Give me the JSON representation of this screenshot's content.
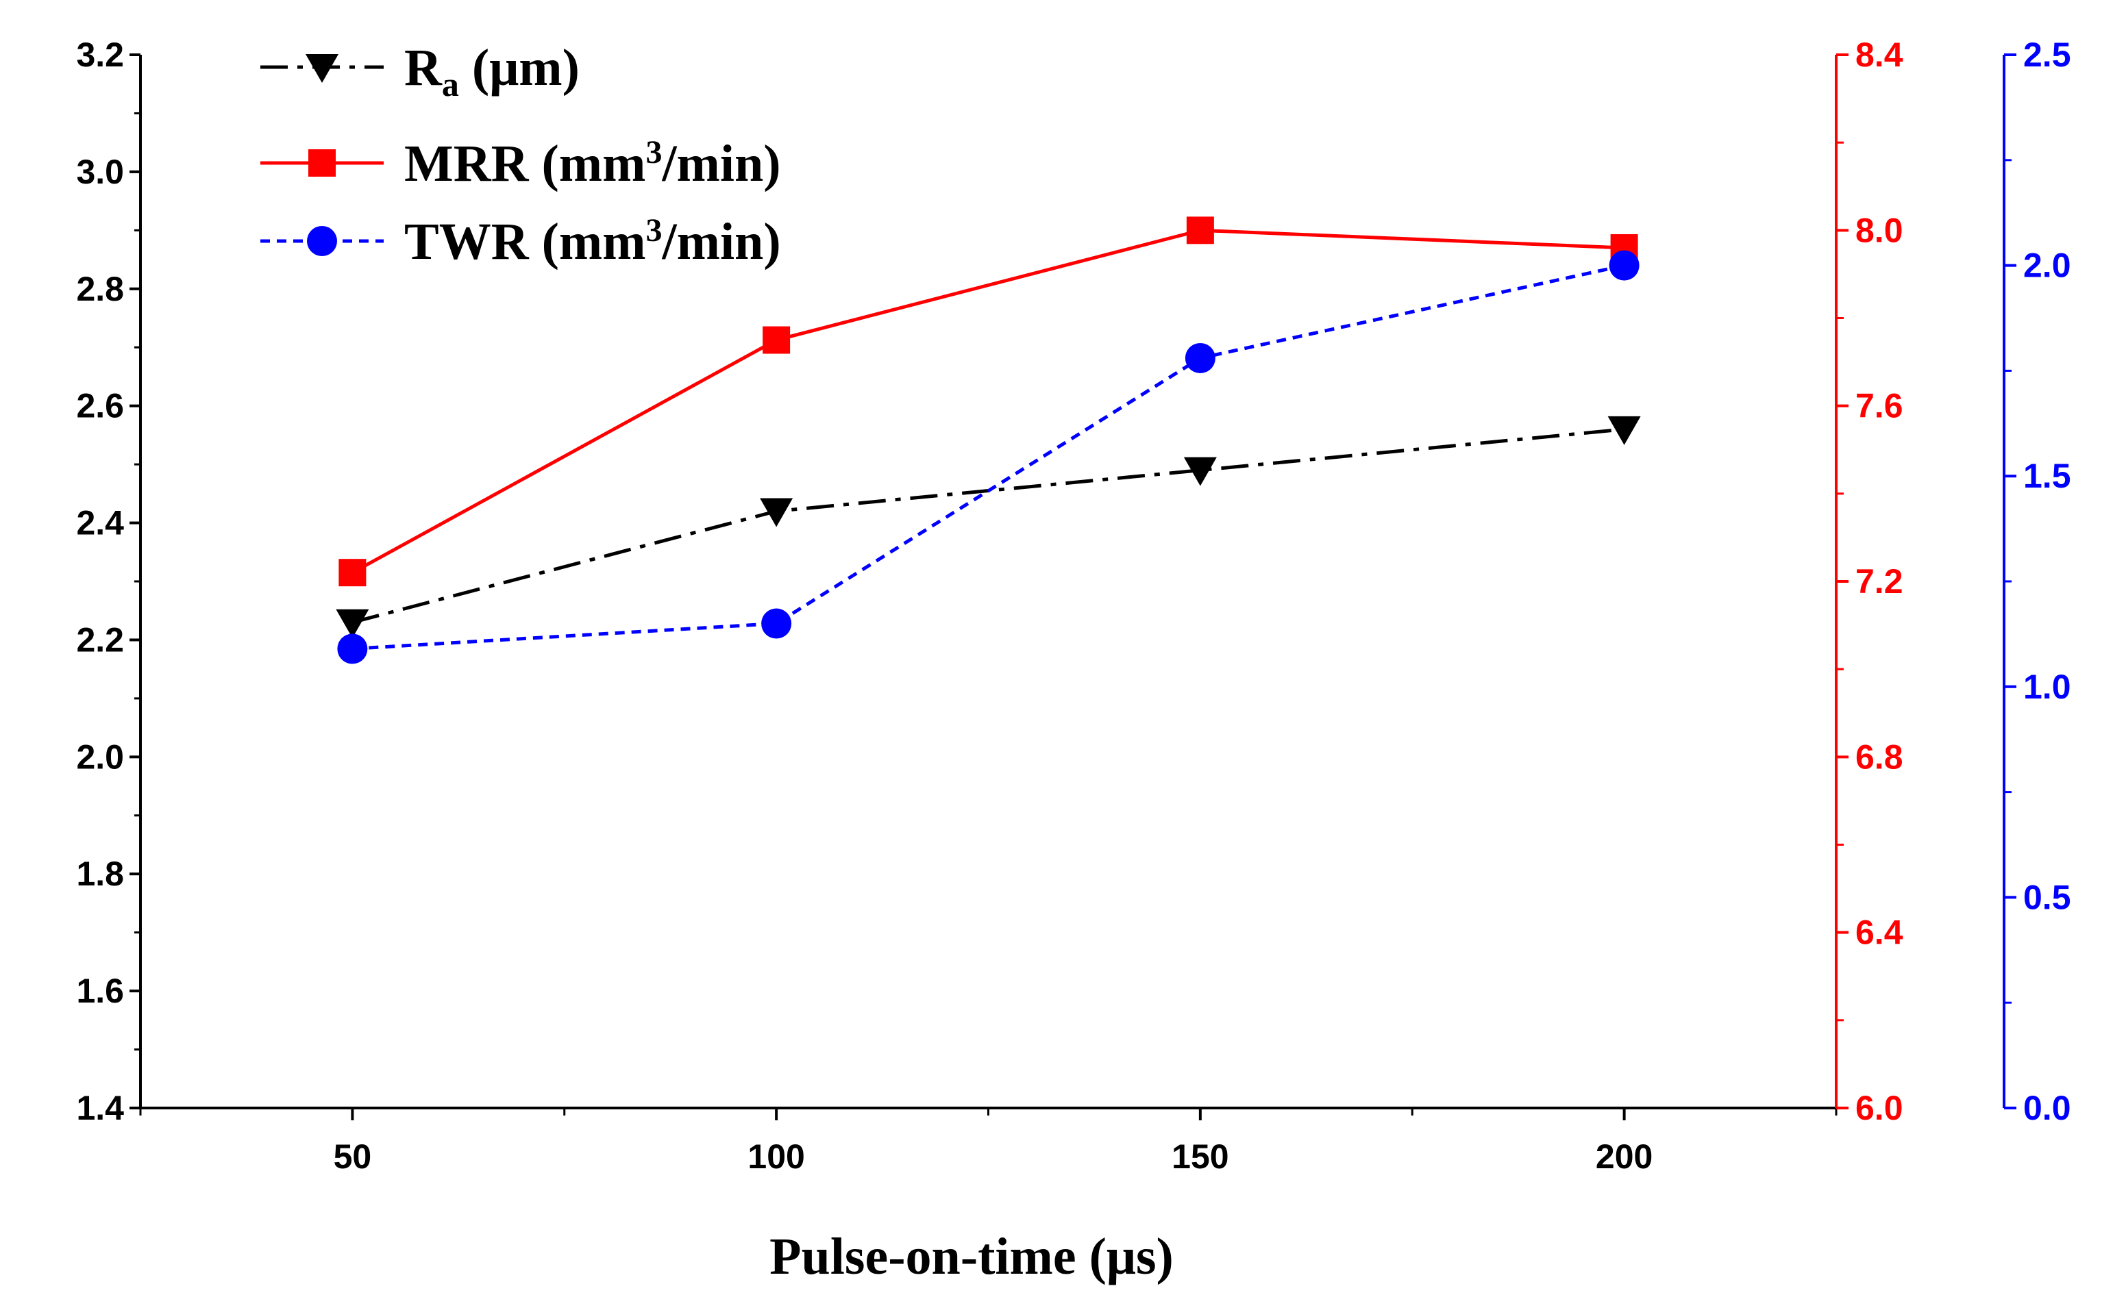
{
  "chart_data": {
    "type": "line",
    "title": "",
    "xlabel": "Pulse-on-time (μs)",
    "x": [
      50,
      100,
      150,
      200
    ],
    "x_ticks": [
      50,
      100,
      150,
      200
    ],
    "x_tick_labels": [
      "50",
      "100",
      "150",
      "200"
    ],
    "xlim": [
      25,
      225
    ],
    "axes": {
      "left": {
        "color": "#000000",
        "ylim": [
          1.4,
          3.2
        ],
        "ticks": [
          1.4,
          1.6,
          1.8,
          2.0,
          2.2,
          2.4,
          2.6,
          2.8,
          3.0,
          3.2
        ],
        "tick_labels": [
          "1.4",
          "1.6",
          "1.8",
          "2.0",
          "2.2",
          "2.4",
          "2.6",
          "2.8",
          "3.0",
          "3.2"
        ]
      },
      "right1": {
        "color": "#ff0000",
        "ylim": [
          6.0,
          8.4
        ],
        "ticks": [
          6.0,
          6.4,
          6.8,
          7.2,
          7.6,
          8.0,
          8.4
        ],
        "tick_labels": [
          "6.0",
          "6.4",
          "6.8",
          "7.2",
          "7.6",
          "8.0",
          "8.4"
        ]
      },
      "right2": {
        "color": "#0000ff",
        "ylim": [
          0.0,
          2.5
        ],
        "ticks": [
          0.0,
          0.5,
          1.0,
          1.5,
          2.0,
          2.5
        ],
        "tick_labels": [
          "0.0",
          "0.5",
          "1.0",
          "1.5",
          "2.0",
          "2.5"
        ]
      }
    },
    "series": [
      {
        "name": "Ra (μm)",
        "legend_main": "R",
        "legend_sub": "a",
        "legend_rest": " (μm)",
        "axis": "left",
        "color": "#000000",
        "line_style": "dash-dot",
        "marker": "triangle-down",
        "values": [
          2.23,
          2.42,
          2.49,
          2.56
        ]
      },
      {
        "name": "MRR (mm3/min)",
        "legend_main": "MRR (mm",
        "legend_sup": "3",
        "legend_rest": "/min)",
        "axis": "right1",
        "color": "#ff0000",
        "line_style": "solid",
        "marker": "square",
        "values": [
          7.22,
          7.75,
          8.0,
          7.96
        ]
      },
      {
        "name": "TWR (mm3/min)",
        "legend_main": "TWR (mm",
        "legend_sup": "3",
        "legend_rest": "/min)",
        "axis": "right2",
        "color": "#0000ff",
        "line_style": "dashed",
        "marker": "circle",
        "values": [
          1.09,
          1.15,
          1.78,
          2.0
        ]
      }
    ],
    "legend_position": "top-left"
  }
}
